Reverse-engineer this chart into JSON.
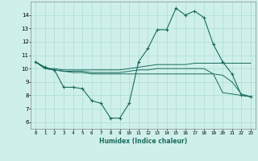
{
  "xlabel": "Humidex (Indice chaleur)",
  "bg_color": "#cff0ea",
  "line_color": "#1a6b5e",
  "xlim": [
    -0.5,
    23.5
  ],
  "ylim": [
    5.5,
    15.0
  ],
  "xticks": [
    0,
    1,
    2,
    3,
    4,
    5,
    6,
    7,
    8,
    9,
    10,
    11,
    12,
    13,
    14,
    15,
    16,
    17,
    18,
    19,
    20,
    21,
    22,
    23
  ],
  "yticks": [
    6,
    7,
    8,
    9,
    10,
    11,
    12,
    13,
    14
  ],
  "grid_color": "#aaddd6",
  "line1_x": [
    0,
    1,
    2,
    3,
    4,
    5,
    6,
    7,
    8,
    9,
    10,
    11,
    12,
    13,
    14,
    15,
    16,
    17,
    18,
    19,
    20,
    21,
    22,
    23
  ],
  "line1_y": [
    10.5,
    10.0,
    10.0,
    9.9,
    9.9,
    9.9,
    9.9,
    9.9,
    9.9,
    9.9,
    10.0,
    10.1,
    10.2,
    10.3,
    10.3,
    10.3,
    10.3,
    10.4,
    10.4,
    10.4,
    10.4,
    10.4,
    10.4,
    10.4
  ],
  "line2_x": [
    0,
    1,
    2,
    3,
    4,
    5,
    6,
    7,
    8,
    9,
    10,
    11,
    12,
    13,
    14,
    15,
    16,
    17,
    18,
    19,
    20,
    21,
    22,
    23
  ],
  "line2_y": [
    10.5,
    10.1,
    9.9,
    8.6,
    8.6,
    8.5,
    7.6,
    7.4,
    6.3,
    6.3,
    7.4,
    10.5,
    11.5,
    12.9,
    12.9,
    14.5,
    14.0,
    14.3,
    13.8,
    11.8,
    10.5,
    9.6,
    8.0,
    7.9
  ],
  "line3_x": [
    0,
    1,
    2,
    3,
    4,
    5,
    6,
    7,
    8,
    9,
    10,
    11,
    12,
    13,
    14,
    15,
    16,
    17,
    18,
    19,
    20,
    21,
    22,
    23
  ],
  "line3_y": [
    10.5,
    10.0,
    9.9,
    9.8,
    9.8,
    9.8,
    9.7,
    9.7,
    9.7,
    9.7,
    9.8,
    9.9,
    9.9,
    10.0,
    10.0,
    10.0,
    10.0,
    10.0,
    10.0,
    9.6,
    9.5,
    9.0,
    8.1,
    7.9
  ],
  "line4_x": [
    0,
    1,
    2,
    3,
    4,
    5,
    6,
    7,
    8,
    9,
    10,
    11,
    12,
    13,
    14,
    15,
    16,
    17,
    18,
    19,
    20,
    21,
    22,
    23
  ],
  "line4_y": [
    10.5,
    10.0,
    9.9,
    9.8,
    9.7,
    9.7,
    9.6,
    9.6,
    9.6,
    9.6,
    9.6,
    9.6,
    9.6,
    9.6,
    9.6,
    9.6,
    9.6,
    9.6,
    9.6,
    9.6,
    8.2,
    8.1,
    8.0,
    7.9
  ]
}
